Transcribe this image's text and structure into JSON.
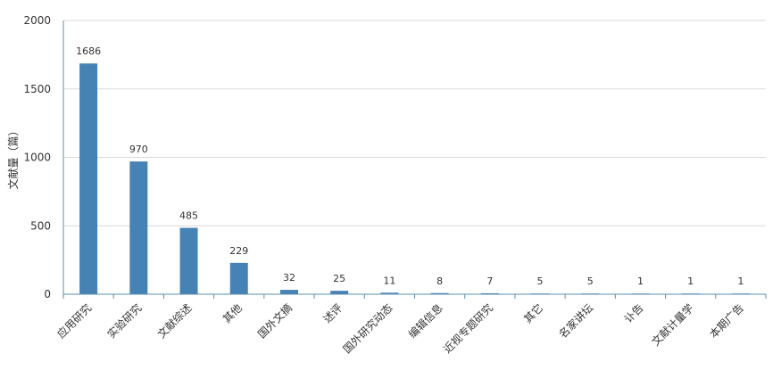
{
  "chart_data": {
    "type": "bar",
    "ylabel": "文献量（篇）",
    "xlabel": "",
    "ylim": [
      0,
      2000
    ],
    "yticks": [
      0,
      500,
      1000,
      1500,
      2000
    ],
    "grid": true,
    "bar_color": "#4682b4",
    "categories": [
      "应用研究",
      "实验研究",
      "文献综述",
      "其他",
      "国外文摘",
      "述评",
      "国外研究动态",
      "编辑信息",
      "近视专题研究",
      "其它",
      "名家讲坛",
      "讣告",
      "文献计量学",
      "本期广告"
    ],
    "values": [
      1686,
      970,
      485,
      229,
      32,
      25,
      11,
      8,
      7,
      5,
      5,
      1,
      1,
      1
    ]
  }
}
